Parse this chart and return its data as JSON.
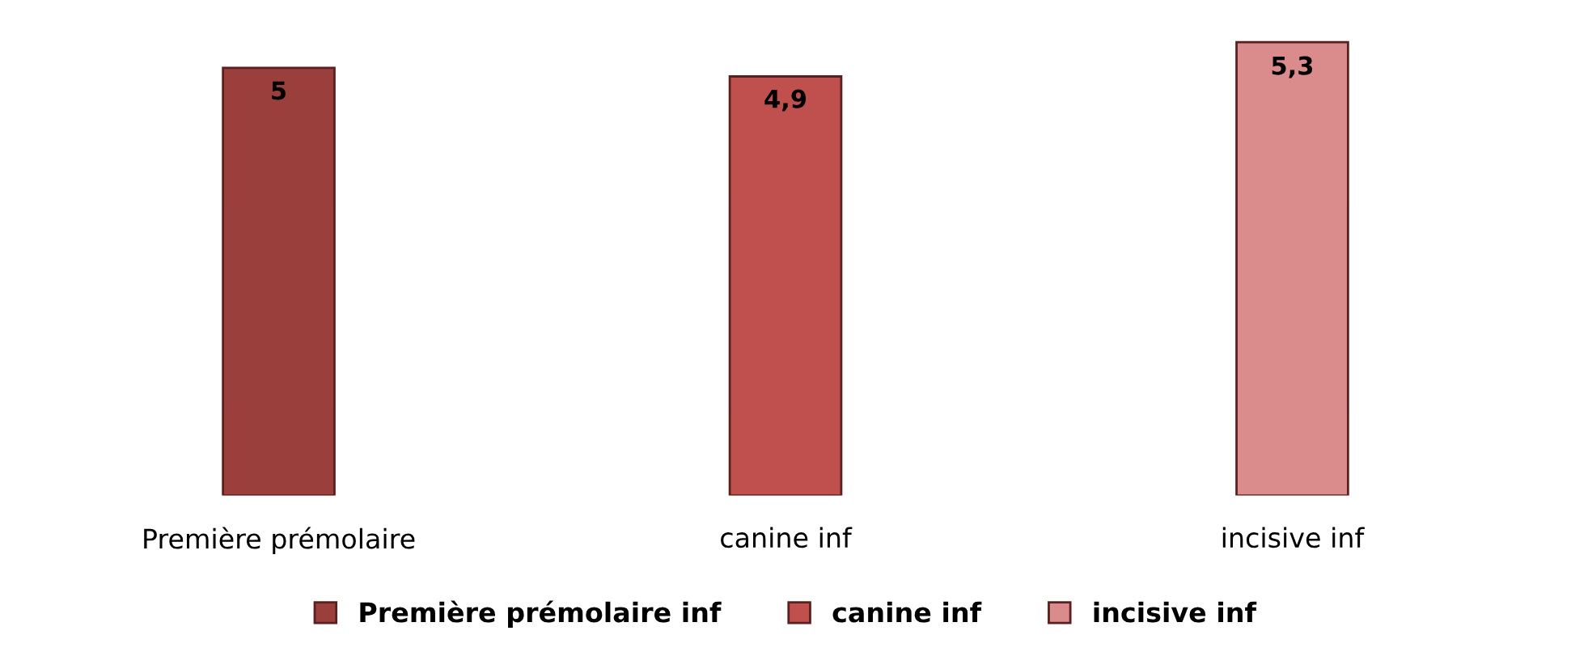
{
  "chart_data": {
    "type": "bar",
    "stacked": true,
    "categories": [
      "Première prémolaire",
      "canine inf",
      "incisive inf"
    ],
    "series": [
      {
        "name": "Première prémolaire inf",
        "color": "#9b3f3d",
        "values": [
          5,
          null,
          null
        ],
        "value_labels": [
          "5",
          null,
          null
        ]
      },
      {
        "name": "canine inf",
        "color": "#c0504d",
        "values": [
          null,
          4.9,
          null
        ],
        "value_labels": [
          null,
          "4,9",
          null
        ]
      },
      {
        "name": "incisive inf",
        "color": "#d98c8b",
        "values": [
          null,
          null,
          5.3
        ],
        "value_labels": [
          null,
          null,
          "5,3"
        ]
      }
    ],
    "tick_labels": "x",
    "grid": false,
    "legend": "bottom"
  }
}
